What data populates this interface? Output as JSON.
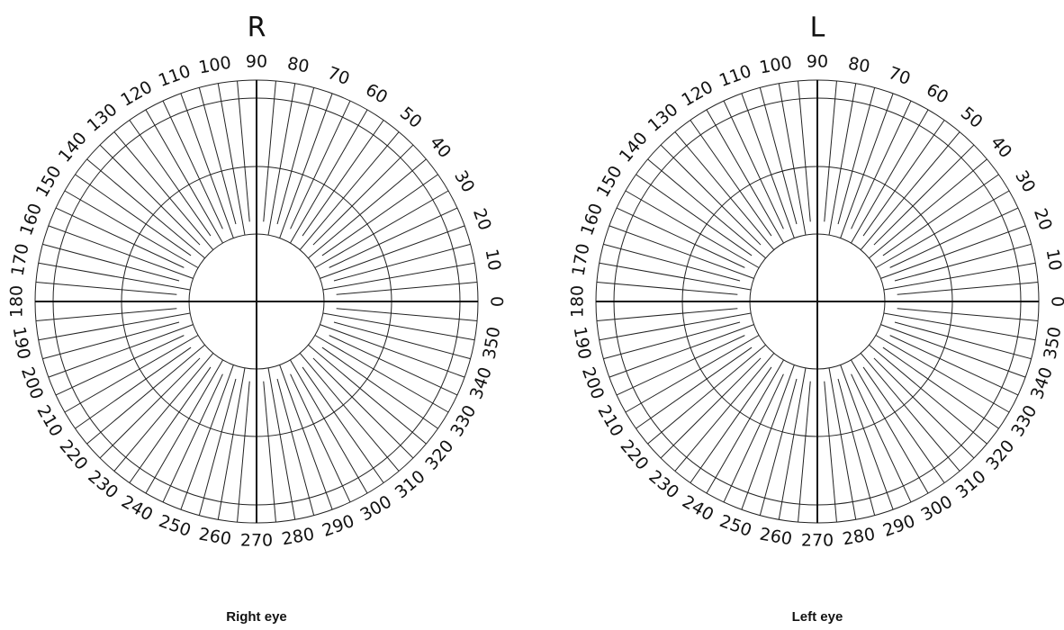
{
  "charts": [
    {
      "title": "R",
      "caption": "Right eye"
    },
    {
      "title": "L",
      "caption": "Left eye"
    }
  ],
  "angles": [
    0,
    10,
    20,
    30,
    40,
    50,
    60,
    70,
    80,
    90,
    100,
    110,
    120,
    130,
    140,
    150,
    160,
    170,
    180,
    190,
    200,
    210,
    220,
    230,
    240,
    250,
    260,
    270,
    280,
    290,
    300,
    310,
    320,
    330,
    340,
    350
  ]
}
